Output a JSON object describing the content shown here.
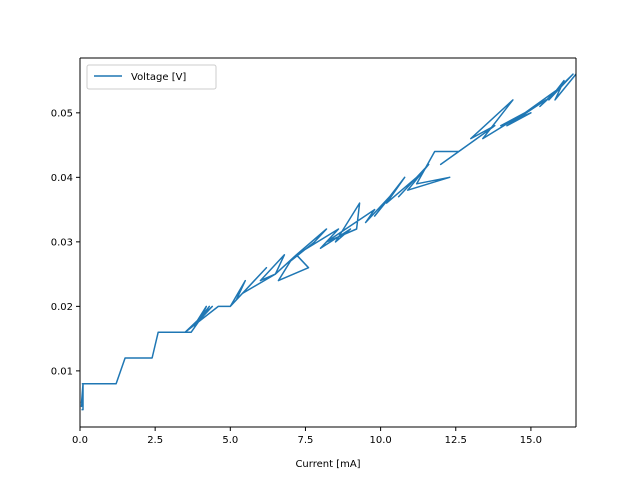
{
  "chart_data": {
    "type": "line",
    "title": "",
    "xlabel": "Current [mA]",
    "ylabel": "",
    "xlim": [
      0,
      16.5
    ],
    "ylim": [
      0.0013,
      0.0585
    ],
    "grid": false,
    "legend_position": "top-left",
    "x_ticks": [
      0.0,
      2.5,
      5.0,
      7.5,
      10.0,
      12.5,
      15.0
    ],
    "x_tick_labels": [
      "0.0",
      "2.5",
      "5.0",
      "7.5",
      "10.0",
      "12.5",
      "15.0"
    ],
    "y_ticks": [
      0.01,
      0.02,
      0.03,
      0.04,
      0.05
    ],
    "y_tick_labels": [
      "0.01",
      "0.02",
      "0.03",
      "0.04",
      "0.05"
    ],
    "series": [
      {
        "name": "Voltage [V]",
        "color": "#1f77b4",
        "x": [
          0.05,
          0.1,
          0.1,
          0.05,
          0.1,
          0.05,
          0.1,
          0.08,
          1.2,
          1.5,
          2.4,
          2.6,
          3.3,
          3.7,
          4.0,
          4.3,
          3.8,
          4.2,
          4.0,
          4.4,
          3.5,
          4.6,
          5.0,
          5.5,
          5.2,
          5.8,
          5.0,
          6.2,
          5.4,
          6.5,
          6.0,
          6.8,
          6.5,
          7.2,
          7.6,
          6.6,
          7.0,
          7.8,
          8.2,
          7.2,
          8.6,
          8.0,
          9.0,
          8.5,
          9.3,
          9.2,
          8.2,
          9.8,
          9.5,
          10.5,
          9.8,
          10.8,
          10.2,
          11.2,
          10.6,
          11.6,
          10.9,
          12.3,
          11.2,
          11.8,
          12.6,
          12.0,
          13.2,
          12.6,
          13.8,
          13.0,
          14.4,
          13.4,
          14.8,
          14.0,
          14.5,
          15.0,
          14.2,
          15.5,
          14.8,
          16.0,
          15.3,
          16.4,
          15.6,
          16.1,
          15.8,
          16.5
        ],
        "y": [
          0.004,
          0.004,
          0.008,
          0.0045,
          0.008,
          0.005,
          0.008,
          0.008,
          0.008,
          0.012,
          0.012,
          0.016,
          0.016,
          0.016,
          0.018,
          0.02,
          0.017,
          0.02,
          0.018,
          0.02,
          0.016,
          0.02,
          0.02,
          0.024,
          0.021,
          0.024,
          0.02,
          0.026,
          0.022,
          0.025,
          0.024,
          0.028,
          0.025,
          0.028,
          0.026,
          0.024,
          0.027,
          0.03,
          0.032,
          0.028,
          0.032,
          0.029,
          0.032,
          0.03,
          0.036,
          0.032,
          0.03,
          0.035,
          0.033,
          0.038,
          0.034,
          0.04,
          0.036,
          0.04,
          0.037,
          0.042,
          0.038,
          0.04,
          0.039,
          0.044,
          0.044,
          0.042,
          0.046,
          0.044,
          0.048,
          0.046,
          0.052,
          0.046,
          0.05,
          0.048,
          0.049,
          0.05,
          0.048,
          0.052,
          0.05,
          0.054,
          0.051,
          0.056,
          0.052,
          0.055,
          0.052,
          0.056
        ]
      }
    ]
  }
}
